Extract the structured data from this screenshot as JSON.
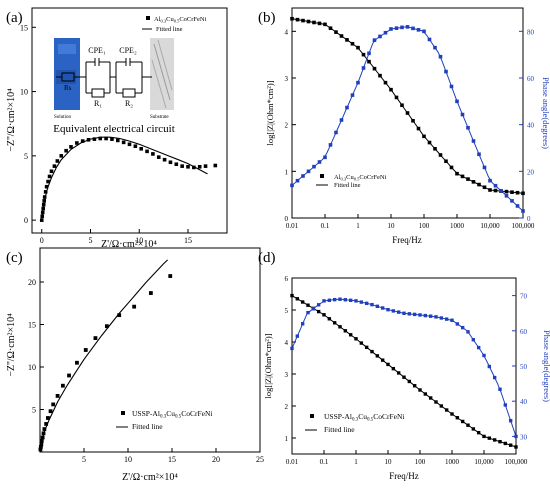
{
  "chart_data": [
    {
      "type": "scatter",
      "panel": "(a)",
      "xlabel": "Z'/Ω·cm²×10⁴",
      "ylabel": "−Z''/Ω·cm²×10⁴",
      "xlim": [
        -1,
        19
      ],
      "ylim": [
        -1,
        16.5
      ],
      "xticks": [
        0,
        5,
        10,
        15
      ],
      "yticks": [
        0,
        5,
        10,
        15
      ],
      "legend": [
        "Al0.3Cu0.5CoCrFeNi",
        "Fitted line"
      ],
      "legend_position": "top-right",
      "inset": {
        "title": "Equivalent electrical circuit",
        "labels": [
          "CPE₁",
          "CPE₂",
          "R₁",
          "R₂",
          "Rs",
          "Solution",
          "Substrate"
        ]
      },
      "series": [
        {
          "name": "Al0.3Cu0.5CoCrFeNi",
          "x": [
            0.0,
            0.05,
            0.1,
            0.15,
            0.2,
            0.25,
            0.3,
            0.4,
            0.5,
            0.65,
            0.8,
            1.0,
            1.3,
            1.6,
            2.0,
            2.5,
            3.0,
            3.6,
            4.2,
            4.8,
            5.4,
            6.0,
            6.6,
            7.2,
            7.8,
            8.4,
            9.0,
            9.6,
            10.2,
            10.8,
            11.4,
            12.0,
            12.6,
            13.2,
            13.8,
            14.4,
            15.0,
            15.6,
            16.2,
            16.8,
            17.8
          ],
          "y": [
            0.0,
            0.3,
            0.6,
            0.9,
            1.2,
            1.5,
            1.8,
            2.2,
            2.6,
            3.0,
            3.4,
            3.8,
            4.2,
            4.6,
            5.0,
            5.4,
            5.7,
            6.0,
            6.15,
            6.25,
            6.3,
            6.35,
            6.35,
            6.3,
            6.2,
            6.05,
            5.9,
            5.75,
            5.55,
            5.35,
            5.15,
            4.9,
            4.7,
            4.5,
            4.35,
            4.2,
            4.15,
            4.1,
            4.15,
            4.2,
            4.25
          ]
        },
        {
          "name": "Fitted line",
          "line": true,
          "x": [
            0,
            0.1,
            0.3,
            0.6,
            1.0,
            1.5,
            2.0,
            3.0,
            4.0,
            5.0,
            6.0,
            7.0,
            8.0,
            9.0,
            10.0,
            11.0,
            12.0,
            13.0,
            14.0,
            15.0,
            16.0,
            17.0
          ],
          "y": [
            0,
            0.7,
            1.6,
            2.5,
            3.3,
            4.1,
            4.7,
            5.5,
            6.0,
            6.3,
            6.45,
            6.45,
            6.35,
            6.15,
            5.9,
            5.6,
            5.3,
            5.0,
            4.7,
            4.4,
            4.0,
            3.6
          ]
        }
      ]
    },
    {
      "type": "line",
      "panel": "(b)",
      "xlabel": "Freq/Hz",
      "ylabel": "log[|Z|(Ohm*cm²)]",
      "y2label": "Phase angle(degrees)",
      "xscale": "log",
      "xlim": [
        0.01,
        100000
      ],
      "xtick_labels": [
        "0.01",
        "0.1",
        "1",
        "10",
        "100",
        "1000",
        "10,000",
        "100,000"
      ],
      "ylim": [
        0,
        4.5
      ],
      "yticks": [
        0,
        1,
        2,
        3,
        4
      ],
      "y2lim": [
        0,
        90
      ],
      "y2ticks": [
        0,
        20,
        40,
        60,
        80
      ],
      "legend": [
        "Al0.3Cu0.5CoCrFeNi",
        "Fitted line"
      ],
      "legend_position": "bottom-left",
      "series": [
        {
          "name": "log|Z|",
          "axis": "left",
          "color": "#000000",
          "x": [
            0.01,
            0.1,
            1,
            10,
            100,
            1000,
            10000,
            100000
          ],
          "y": [
            4.27,
            4.15,
            3.65,
            2.75,
            1.75,
            0.95,
            0.6,
            0.53
          ]
        },
        {
          "name": "Phase angle",
          "axis": "right",
          "color": "#1f3fbf",
          "x": [
            0.01,
            0.1,
            1,
            3,
            10,
            30,
            100,
            300,
            1000,
            10000,
            100000
          ],
          "y": [
            14,
            26,
            58,
            76,
            81,
            82,
            80,
            70,
            50,
            16,
            3
          ]
        }
      ]
    },
    {
      "type": "scatter",
      "panel": "(c)",
      "xlabel": "Z'/Ω·cm²×10⁴",
      "ylabel": "−Z''/Ω·cm²×10⁴",
      "xlim": [
        0,
        25
      ],
      "ylim": [
        0,
        24
      ],
      "xticks": [
        5,
        10,
        15,
        20,
        25
      ],
      "yticks": [
        5,
        10,
        15,
        20
      ],
      "legend": [
        "USSP-Al0.3Cu0.5CoCrFeNi",
        "Fitted line"
      ],
      "legend_position": "bottom-right",
      "series": [
        {
          "name": "USSP-Al0.3Cu0.5CoCrFeNi",
          "x": [
            0.05,
            0.1,
            0.15,
            0.2,
            0.3,
            0.4,
            0.5,
            0.7,
            0.9,
            1.2,
            1.5,
            2.0,
            2.6,
            3.3,
            4.2,
            5.2,
            6.3,
            7.6,
            9.0,
            10.7,
            12.6,
            14.8
          ],
          "y": [
            0.3,
            0.6,
            0.9,
            1.3,
            1.7,
            2.2,
            2.7,
            3.3,
            4.0,
            4.8,
            5.6,
            6.6,
            7.8,
            9.0,
            10.5,
            12.0,
            13.4,
            14.8,
            16.1,
            17.1,
            18.7,
            20.7
          ]
        },
        {
          "name": "Fitted line",
          "line": true,
          "x": [
            0,
            0.2,
            0.5,
            1,
            2,
            3,
            4,
            5,
            6,
            7,
            8,
            9,
            10,
            11,
            12,
            13,
            14,
            14.5
          ],
          "y": [
            0,
            1.3,
            2.4,
            3.7,
            5.9,
            7.7,
            9.3,
            10.9,
            12.3,
            13.7,
            15.0,
            16.3,
            17.5,
            18.7,
            19.9,
            21.0,
            22.1,
            22.6
          ]
        }
      ]
    },
    {
      "type": "line",
      "panel": "(d)",
      "xlabel": "Freq/Hz",
      "ylabel": "log[|Z|(Ohm*cm²)]",
      "y2label": "Phase angle(degrees)",
      "xscale": "log",
      "xlim": [
        0.01,
        100000
      ],
      "xtick_labels": [
        "0.01",
        "0.1",
        "1",
        "10",
        "100",
        "1000",
        "10,000",
        "100,000"
      ],
      "ylim": [
        0.5,
        6
      ],
      "yticks": [
        1,
        2,
        3,
        4,
        5,
        6
      ],
      "y2lim": [
        25,
        75
      ],
      "y2ticks": [
        30,
        40,
        50,
        60,
        70
      ],
      "legend": [
        "USSP-Al0.3Cu0.5CoCrFeNi",
        "Fitted line"
      ],
      "legend_position": "bottom-left",
      "series": [
        {
          "name": "log|Z|",
          "axis": "left",
          "color": "#000000",
          "x": [
            0.01,
            0.1,
            1,
            10,
            100,
            1000,
            10000,
            100000
          ],
          "y": [
            5.45,
            4.85,
            4.1,
            3.3,
            2.5,
            1.75,
            1.05,
            0.72
          ]
        },
        {
          "name": "Phase angle",
          "axis": "right",
          "color": "#1f3fbf",
          "x": [
            0.01,
            0.03,
            0.1,
            0.3,
            1,
            3,
            10,
            30,
            100,
            300,
            1000,
            3000,
            10000,
            30000,
            100000
          ],
          "y": [
            55,
            65,
            68.5,
            69,
            68.5,
            67.5,
            66,
            65,
            64.5,
            64,
            63,
            60,
            53,
            44,
            30
          ]
        }
      ]
    }
  ],
  "panels": {
    "a": {
      "label": "(a)",
      "xlabel": "Z'/Ω·cm²×10⁴",
      "ylabel": "−Z''/Ω·cm²×10⁴",
      "ticks_x": [
        "0",
        "5",
        "10",
        "15"
      ],
      "ticks_y": [
        "0",
        "5",
        "10",
        "15"
      ],
      "legend_pts": "Al",
      "legend_pts_sub1": "0.3",
      "legend_pts_mid": "Cu",
      "legend_pts_sub2": "0.5",
      "legend_pts_end": "CoCrFeNi",
      "legend_line": "Fitted line",
      "circuit_title": "Equivalent electrical circuit",
      "cpe1": "CPE₁",
      "cpe2": "CPE₂",
      "r1": "R₁",
      "r2": "R₂",
      "rs": "Rs",
      "solution": "Solution",
      "substrate": "Substrate"
    },
    "b": {
      "label": "(b)",
      "xlabel": "Freq/Hz",
      "ylabel": "log[|Z|(Ohm*cm²)]",
      "y2label": "Phase angle(degrees)",
      "ticks_x": [
        "0.01",
        "0.1",
        "1",
        "10",
        "100",
        "1000",
        "10,000",
        "100,000"
      ],
      "ticks_y": [
        "0",
        "1",
        "2",
        "3",
        "4"
      ],
      "ticks_y2": [
        "0",
        "20",
        "40",
        "60",
        "80"
      ],
      "legend_pts": "Al",
      "legend_pts_sub1": "0.3",
      "legend_pts_mid": "Cu",
      "legend_pts_sub2": "0.5",
      "legend_pts_end": "CoCrFeNi",
      "legend_line": "Fitted line"
    },
    "c": {
      "label": "(c)",
      "xlabel": "Z'/Ω·cm²×10⁴",
      "ylabel": "−Z''/Ω·cm²×10⁴",
      "ticks_x": [
        "5",
        "10",
        "15",
        "20",
        "25"
      ],
      "ticks_y": [
        "5",
        "10",
        "15",
        "20"
      ],
      "legend_pts": "USSP-Al",
      "legend_pts_sub1": "0.3",
      "legend_pts_mid": "Cu",
      "legend_pts_sub2": "0.5",
      "legend_pts_end": "CoCrFeNi",
      "legend_line": "Fitted line"
    },
    "d": {
      "label": "(d)",
      "xlabel": "Freq/Hz",
      "ylabel": "log[|Z|(Ohm*cm²)]",
      "y2label": "Phase angle(degrees)",
      "ticks_x": [
        "0.01",
        "0.1",
        "1",
        "10",
        "100",
        "1000",
        "10,000",
        "100,000"
      ],
      "ticks_y": [
        "1",
        "2",
        "3",
        "4",
        "5",
        "6"
      ],
      "ticks_y2": [
        "30",
        "40",
        "50",
        "60",
        "70"
      ],
      "legend_pts": "USSP-Al",
      "legend_pts_sub1": "0.3",
      "legend_pts_mid": "Cu",
      "legend_pts_sub2": "0.5",
      "legend_pts_end": "CoCrFeNi",
      "legend_line": "Fitted line"
    }
  }
}
